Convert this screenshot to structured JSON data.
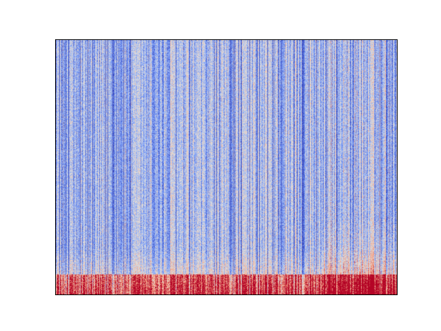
{
  "chart_data": {
    "type": "heatmap",
    "title": "",
    "xlabel": "",
    "ylabel": "",
    "xticks": [],
    "yticks": [],
    "colormap": "coolwarm",
    "colormap_colors": {
      "low": "#3b4cc0",
      "mid": "#dddddd",
      "high": "#b40426"
    },
    "color_range": [
      -1,
      1
    ],
    "grid": false,
    "legend": "none",
    "description_of_values": {
      "columns": 320,
      "rows": 240,
      "cold_columns_fraction": 0.15,
      "warm_band_rows_fraction_bottom": 0.08
    }
  }
}
